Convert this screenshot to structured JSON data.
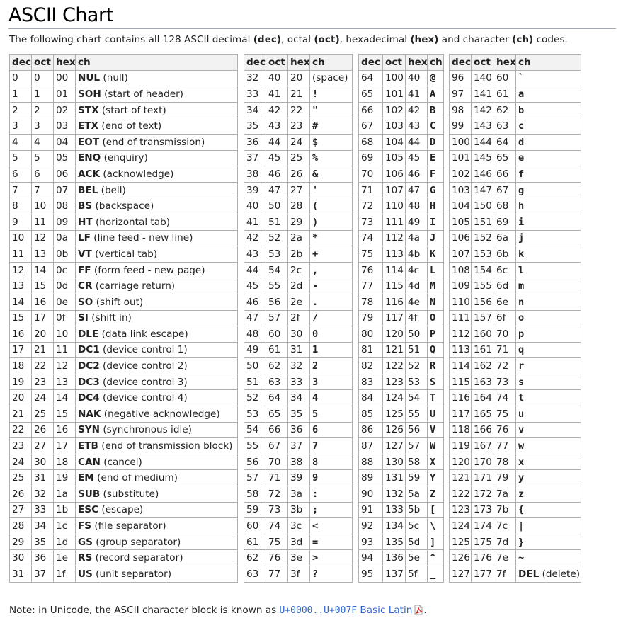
{
  "title": "ASCII Chart",
  "intro": {
    "before": "The following chart contains all 128 ASCII decimal ",
    "dec": "(dec)",
    "sep1": ", octal ",
    "oct": "(oct)",
    "sep2": ", hexadecimal ",
    "hex": "(hex)",
    "sep3": " and character ",
    "ch": "(ch)",
    "after": " codes."
  },
  "headers": {
    "dec": "dec",
    "oct": "oct",
    "hex": "hex",
    "ch": "ch"
  },
  "table1": [
    [
      "0",
      "0",
      "00",
      "NUL",
      "(null)"
    ],
    [
      "1",
      "1",
      "01",
      "SOH",
      "(start of header)"
    ],
    [
      "2",
      "2",
      "02",
      "STX",
      "(start of text)"
    ],
    [
      "3",
      "3",
      "03",
      "ETX",
      "(end of text)"
    ],
    [
      "4",
      "4",
      "04",
      "EOT",
      "(end of transmission)"
    ],
    [
      "5",
      "5",
      "05",
      "ENQ",
      "(enquiry)"
    ],
    [
      "6",
      "6",
      "06",
      "ACK",
      "(acknowledge)"
    ],
    [
      "7",
      "7",
      "07",
      "BEL",
      "(bell)"
    ],
    [
      "8",
      "10",
      "08",
      "BS",
      "(backspace)"
    ],
    [
      "9",
      "11",
      "09",
      "HT",
      "(horizontal tab)"
    ],
    [
      "10",
      "12",
      "0a",
      "LF",
      "(line feed - new line)"
    ],
    [
      "11",
      "13",
      "0b",
      "VT",
      "(vertical tab)"
    ],
    [
      "12",
      "14",
      "0c",
      "FF",
      "(form feed - new page)"
    ],
    [
      "13",
      "15",
      "0d",
      "CR",
      "(carriage return)"
    ],
    [
      "14",
      "16",
      "0e",
      "SO",
      "(shift out)"
    ],
    [
      "15",
      "17",
      "0f",
      "SI",
      "(shift in)"
    ],
    [
      "16",
      "20",
      "10",
      "DLE",
      "(data link escape)"
    ],
    [
      "17",
      "21",
      "11",
      "DC1",
      "(device control 1)"
    ],
    [
      "18",
      "22",
      "12",
      "DC2",
      "(device control 2)"
    ],
    [
      "19",
      "23",
      "13",
      "DC3",
      "(device control 3)"
    ],
    [
      "20",
      "24",
      "14",
      "DC4",
      "(device control 4)"
    ],
    [
      "21",
      "25",
      "15",
      "NAK",
      "(negative acknowledge)"
    ],
    [
      "22",
      "26",
      "16",
      "SYN",
      "(synchronous idle)"
    ],
    [
      "23",
      "27",
      "17",
      "ETB",
      "(end of transmission block)"
    ],
    [
      "24",
      "30",
      "18",
      "CAN",
      "(cancel)"
    ],
    [
      "25",
      "31",
      "19",
      "EM",
      "(end of medium)"
    ],
    [
      "26",
      "32",
      "1a",
      "SUB",
      "(substitute)"
    ],
    [
      "27",
      "33",
      "1b",
      "ESC",
      "(escape)"
    ],
    [
      "28",
      "34",
      "1c",
      "FS",
      "(file separator)"
    ],
    [
      "29",
      "35",
      "1d",
      "GS",
      "(group separator)"
    ],
    [
      "30",
      "36",
      "1e",
      "RS",
      "(record separator)"
    ],
    [
      "31",
      "37",
      "1f",
      "US",
      "(unit separator)"
    ]
  ],
  "table2": [
    [
      "32",
      "40",
      "20",
      "(space)"
    ],
    [
      "33",
      "41",
      "21",
      "!"
    ],
    [
      "34",
      "42",
      "22",
      "\""
    ],
    [
      "35",
      "43",
      "23",
      "#"
    ],
    [
      "36",
      "44",
      "24",
      "$"
    ],
    [
      "37",
      "45",
      "25",
      "%"
    ],
    [
      "38",
      "46",
      "26",
      "&"
    ],
    [
      "39",
      "47",
      "27",
      "'"
    ],
    [
      "40",
      "50",
      "28",
      "("
    ],
    [
      "41",
      "51",
      "29",
      ")"
    ],
    [
      "42",
      "52",
      "2a",
      "*"
    ],
    [
      "43",
      "53",
      "2b",
      "+"
    ],
    [
      "44",
      "54",
      "2c",
      ","
    ],
    [
      "45",
      "55",
      "2d",
      "-"
    ],
    [
      "46",
      "56",
      "2e",
      "."
    ],
    [
      "47",
      "57",
      "2f",
      "/"
    ],
    [
      "48",
      "60",
      "30",
      "0"
    ],
    [
      "49",
      "61",
      "31",
      "1"
    ],
    [
      "50",
      "62",
      "32",
      "2"
    ],
    [
      "51",
      "63",
      "33",
      "3"
    ],
    [
      "52",
      "64",
      "34",
      "4"
    ],
    [
      "53",
      "65",
      "35",
      "5"
    ],
    [
      "54",
      "66",
      "36",
      "6"
    ],
    [
      "55",
      "67",
      "37",
      "7"
    ],
    [
      "56",
      "70",
      "38",
      "8"
    ],
    [
      "57",
      "71",
      "39",
      "9"
    ],
    [
      "58",
      "72",
      "3a",
      ":"
    ],
    [
      "59",
      "73",
      "3b",
      ";"
    ],
    [
      "60",
      "74",
      "3c",
      "<"
    ],
    [
      "61",
      "75",
      "3d",
      "="
    ],
    [
      "62",
      "76",
      "3e",
      ">"
    ],
    [
      "63",
      "77",
      "3f",
      "?"
    ]
  ],
  "table3": [
    [
      "64",
      "100",
      "40",
      "@"
    ],
    [
      "65",
      "101",
      "41",
      "A"
    ],
    [
      "66",
      "102",
      "42",
      "B"
    ],
    [
      "67",
      "103",
      "43",
      "C"
    ],
    [
      "68",
      "104",
      "44",
      "D"
    ],
    [
      "69",
      "105",
      "45",
      "E"
    ],
    [
      "70",
      "106",
      "46",
      "F"
    ],
    [
      "71",
      "107",
      "47",
      "G"
    ],
    [
      "72",
      "110",
      "48",
      "H"
    ],
    [
      "73",
      "111",
      "49",
      "I"
    ],
    [
      "74",
      "112",
      "4a",
      "J"
    ],
    [
      "75",
      "113",
      "4b",
      "K"
    ],
    [
      "76",
      "114",
      "4c",
      "L"
    ],
    [
      "77",
      "115",
      "4d",
      "M"
    ],
    [
      "78",
      "116",
      "4e",
      "N"
    ],
    [
      "79",
      "117",
      "4f",
      "O"
    ],
    [
      "80",
      "120",
      "50",
      "P"
    ],
    [
      "81",
      "121",
      "51",
      "Q"
    ],
    [
      "82",
      "122",
      "52",
      "R"
    ],
    [
      "83",
      "123",
      "53",
      "S"
    ],
    [
      "84",
      "124",
      "54",
      "T"
    ],
    [
      "85",
      "125",
      "55",
      "U"
    ],
    [
      "86",
      "126",
      "56",
      "V"
    ],
    [
      "87",
      "127",
      "57",
      "W"
    ],
    [
      "88",
      "130",
      "58",
      "X"
    ],
    [
      "89",
      "131",
      "59",
      "Y"
    ],
    [
      "90",
      "132",
      "5a",
      "Z"
    ],
    [
      "91",
      "133",
      "5b",
      "["
    ],
    [
      "92",
      "134",
      "5c",
      "\\"
    ],
    [
      "93",
      "135",
      "5d",
      "]"
    ],
    [
      "94",
      "136",
      "5e",
      "^"
    ],
    [
      "95",
      "137",
      "5f",
      "_"
    ]
  ],
  "table4": [
    [
      "96",
      "140",
      "60",
      "`"
    ],
    [
      "97",
      "141",
      "61",
      "a"
    ],
    [
      "98",
      "142",
      "62",
      "b"
    ],
    [
      "99",
      "143",
      "63",
      "c"
    ],
    [
      "100",
      "144",
      "64",
      "d"
    ],
    [
      "101",
      "145",
      "65",
      "e"
    ],
    [
      "102",
      "146",
      "66",
      "f"
    ],
    [
      "103",
      "147",
      "67",
      "g"
    ],
    [
      "104",
      "150",
      "68",
      "h"
    ],
    [
      "105",
      "151",
      "69",
      "i"
    ],
    [
      "106",
      "152",
      "6a",
      "j"
    ],
    [
      "107",
      "153",
      "6b",
      "k"
    ],
    [
      "108",
      "154",
      "6c",
      "l"
    ],
    [
      "109",
      "155",
      "6d",
      "m"
    ],
    [
      "110",
      "156",
      "6e",
      "n"
    ],
    [
      "111",
      "157",
      "6f",
      "o"
    ],
    [
      "112",
      "160",
      "70",
      "p"
    ],
    [
      "113",
      "161",
      "71",
      "q"
    ],
    [
      "114",
      "162",
      "72",
      "r"
    ],
    [
      "115",
      "163",
      "73",
      "s"
    ],
    [
      "116",
      "164",
      "74",
      "t"
    ],
    [
      "117",
      "165",
      "75",
      "u"
    ],
    [
      "118",
      "166",
      "76",
      "v"
    ],
    [
      "119",
      "167",
      "77",
      "w"
    ],
    [
      "120",
      "170",
      "78",
      "x"
    ],
    [
      "121",
      "171",
      "79",
      "y"
    ],
    [
      "122",
      "172",
      "7a",
      "z"
    ],
    [
      "123",
      "173",
      "7b",
      "{"
    ],
    [
      "124",
      "174",
      "7c",
      "|"
    ],
    [
      "125",
      "175",
      "7d",
      "}"
    ],
    [
      "126",
      "176",
      "7e",
      "~"
    ],
    [
      "127",
      "177",
      "7f",
      "DEL",
      "(delete)"
    ]
  ],
  "note": {
    "before": "Note: in Unicode, the ASCII character block is known as ",
    "link_code": "U+0000..U+007F",
    "link_text": " Basic Latin",
    "after": ".",
    "pdf_icon": "pdf-file-icon"
  }
}
